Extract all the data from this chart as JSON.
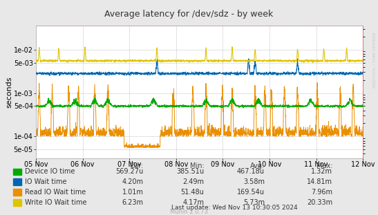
{
  "title": "Average latency for /dev/sdz - by week",
  "ylabel": "seconds",
  "fig_bg": "#e8e8e8",
  "plot_bg": "#ffffff",
  "x_ticks_labels": [
    "05 Nov",
    "06 Nov",
    "07 Nov",
    "08 Nov",
    "09 Nov",
    "10 Nov",
    "11 Nov",
    "12 Nov"
  ],
  "ylim_min": 3.2e-05,
  "ylim_max": 0.035,
  "colors": {
    "device_io": "#00aa00",
    "io_wait": "#0066b3",
    "read_io": "#ea8f00",
    "write_io": "#e0c400"
  },
  "stats": {
    "headers": [
      "Cur:",
      "Min:",
      "Avg:",
      "Max:"
    ],
    "rows": [
      [
        "Device IO time",
        "569.27u",
        "385.51u",
        "467.18u",
        "1.32m"
      ],
      [
        "IO Wait time",
        "4.20m",
        "2.49m",
        "3.58m",
        "14.81m"
      ],
      [
        "Read IO Wait time",
        "1.01m",
        "51.48u",
        "169.54u",
        "7.96m"
      ],
      [
        "Write IO Wait time",
        "6.23m",
        "4.17m",
        "5.73m",
        "20.33m"
      ]
    ]
  },
  "last_update": "Last update: Wed Nov 13 10:30:05 2024",
  "muninver": "Munin 2.0.73",
  "watermark": "RRDTOOL / TOBI OETIKER",
  "ytick_labels": [
    "5e-05",
    "1e-04",
    "5e-04",
    "1e-03",
    "5e-03",
    "1e-02"
  ],
  "ytick_values": [
    5e-05,
    0.0001,
    0.0005,
    0.001,
    0.005,
    0.01
  ]
}
